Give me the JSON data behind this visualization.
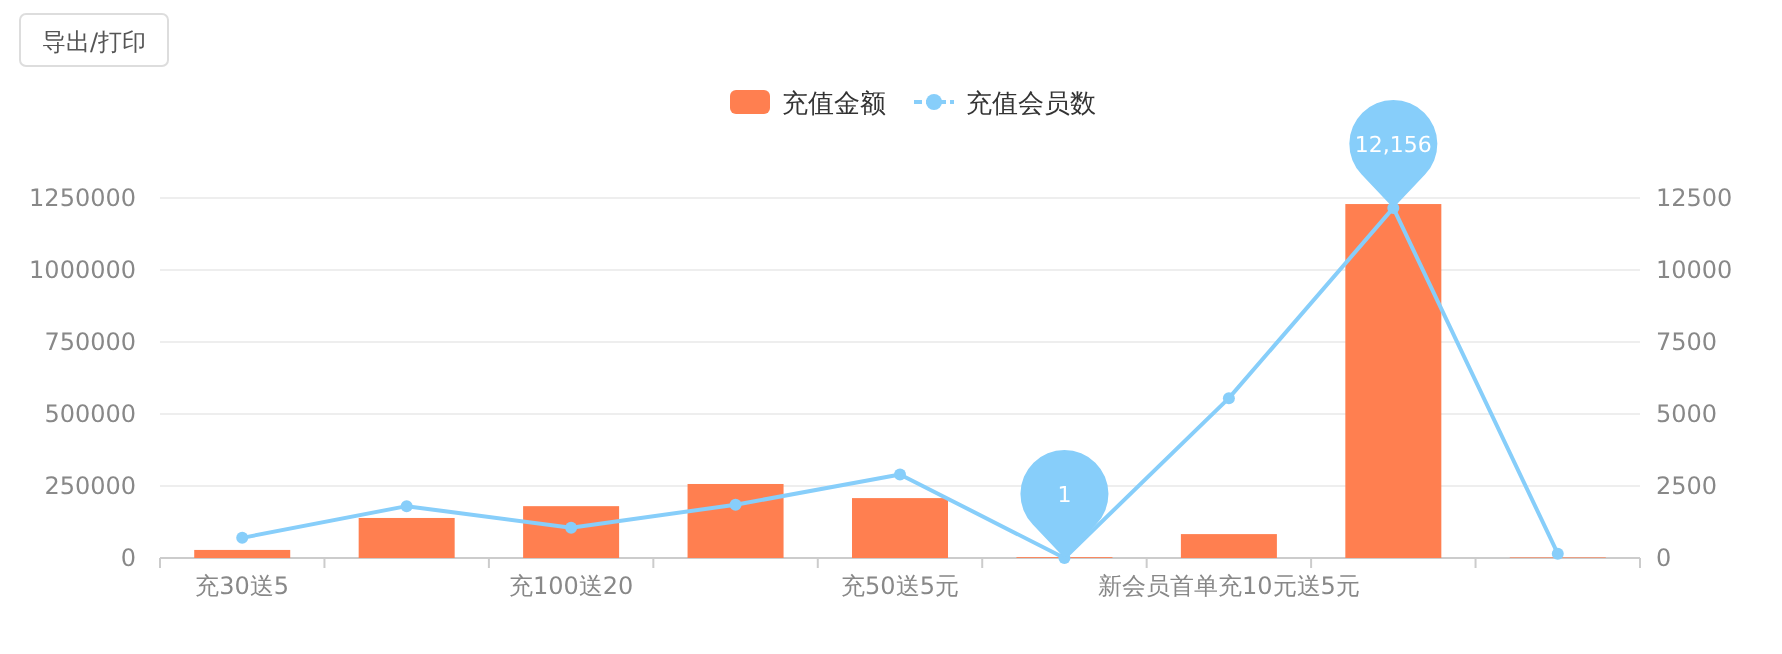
{
  "chart_data": {
    "type": "bar",
    "legend": "top",
    "grid": "y",
    "annotations": [
      "导出/打印"
    ],
    "categories": [
      "充30送5",
      null,
      "充100送20",
      null,
      "充50送5元",
      null,
      "新会员首单充10元送5元",
      null,
      null
    ],
    "ylim": [
      0,
      1250000
    ],
    "yticks": [
      0,
      250000,
      500000,
      750000,
      1000000,
      1250000
    ],
    "y2lim": [
      0,
      12500
    ],
    "y2ticks": [
      0,
      2500,
      5000,
      7500,
      10000,
      12500
    ],
    "series": [
      {
        "name": "充值金额",
        "color": "#ff7f50",
        "values": [
          28000,
          139000,
          180000,
          257000,
          208000,
          3000,
          83000,
          1229000,
          2000
        ]
      },
      {
        "name": "充值会员数",
        "type": "line",
        "axis": "y2",
        "color": "#87cefa",
        "marker": "circle",
        "values": [
          700,
          1800,
          1050,
          1850,
          2900,
          1,
          5550,
          12156,
          150
        ],
        "value_labels": [
          null,
          null,
          null,
          null,
          null,
          "1",
          null,
          "12,156",
          null
        ]
      }
    ]
  }
}
